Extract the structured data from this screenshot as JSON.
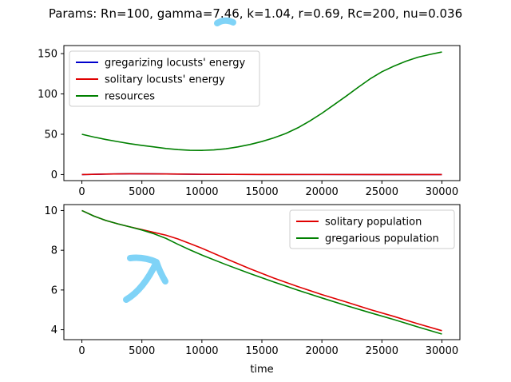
{
  "figure": {
    "suptitle": "Params: Rn=100, gamma=7.46, k=1.04, r=0.69, Rc=200, nu=0.036"
  },
  "annotations": {
    "marker_color": "#7fd3f7",
    "arrow_description_icon": "hand-drawn-arrow-icon"
  },
  "chart_data": [
    {
      "type": "line",
      "title": "",
      "xlabel": "",
      "ylabel": "",
      "xlim": [
        -1500,
        31500
      ],
      "ylim": [
        -7.5,
        160
      ],
      "xticks": [
        0,
        5000,
        10000,
        15000,
        20000,
        25000,
        30000
      ],
      "xtick_labels": [
        "0",
        "5000",
        "10000",
        "15000",
        "20000",
        "25000",
        "30000"
      ],
      "yticks": [
        0,
        50,
        100,
        150
      ],
      "ytick_labels": [
        "0",
        "50",
        "100",
        "150"
      ],
      "legend_position": "upper-left",
      "grid": false,
      "series": [
        {
          "name": "gregarizing locusts' energy",
          "color": "#0000cc",
          "x": [
            0,
            2000,
            4000,
            6000,
            8000,
            10000,
            15000,
            20000,
            25000,
            30000
          ],
          "y": [
            0,
            0.6,
            1.0,
            0.9,
            0.6,
            0.3,
            0.1,
            0.05,
            0.02,
            0
          ]
        },
        {
          "name": "solitary locusts' energy",
          "color": "#e00000",
          "x": [
            0,
            2000,
            4000,
            6000,
            8000,
            10000,
            15000,
            20000,
            25000,
            30000
          ],
          "y": [
            0,
            0.6,
            1.0,
            0.9,
            0.6,
            0.3,
            0.1,
            0.05,
            0.02,
            0
          ]
        },
        {
          "name": "resources",
          "color": "#008000",
          "x": [
            0,
            1000,
            2000,
            3000,
            4000,
            5000,
            6000,
            7000,
            8000,
            9000,
            10000,
            11000,
            12000,
            13000,
            14000,
            15000,
            16000,
            17000,
            18000,
            19000,
            20000,
            21000,
            22000,
            23000,
            24000,
            25000,
            26000,
            27000,
            28000,
            29000,
            30000
          ],
          "y": [
            50,
            46.5,
            43.5,
            40.8,
            38.3,
            36.2,
            34.3,
            32.3,
            31.0,
            30.1,
            30.0,
            30.6,
            32.0,
            34.3,
            37.3,
            41.0,
            45.5,
            51.0,
            58.0,
            66.5,
            76.0,
            86.5,
            97.0,
            108.0,
            118.5,
            127.5,
            134.5,
            140.5,
            145.5,
            149.0,
            152.0
          ]
        }
      ]
    },
    {
      "type": "line",
      "title": "",
      "xlabel": "time",
      "ylabel": "",
      "xlim": [
        -1500,
        31500
      ],
      "ylim": [
        3.5,
        10.3
      ],
      "xticks": [
        0,
        5000,
        10000,
        15000,
        20000,
        25000,
        30000
      ],
      "xtick_labels": [
        "0",
        "5000",
        "10000",
        "15000",
        "20000",
        "25000",
        "30000"
      ],
      "yticks": [
        4,
        6,
        8,
        10
      ],
      "ytick_labels": [
        "4",
        "6",
        "8",
        "10"
      ],
      "legend_position": "upper-right",
      "grid": false,
      "series": [
        {
          "name": "solitary population",
          "color": "#e00000",
          "x": [
            0,
            1000,
            2000,
            3000,
            4000,
            5000,
            6000,
            7000,
            8000,
            9000,
            10000,
            12000,
            14000,
            16000,
            18000,
            20000,
            22000,
            24000,
            26000,
            28000,
            30000
          ],
          "y": [
            10.0,
            9.72,
            9.5,
            9.33,
            9.18,
            9.04,
            8.9,
            8.76,
            8.57,
            8.34,
            8.1,
            7.58,
            7.07,
            6.6,
            6.17,
            5.77,
            5.4,
            5.02,
            4.67,
            4.3,
            3.95
          ]
        },
        {
          "name": "gregarious population",
          "color": "#008000",
          "x": [
            0,
            1000,
            2000,
            3000,
            4000,
            5000,
            6000,
            7000,
            8000,
            9000,
            10000,
            12000,
            14000,
            16000,
            18000,
            20000,
            22000,
            24000,
            26000,
            28000,
            30000
          ],
          "y": [
            10.0,
            9.72,
            9.5,
            9.33,
            9.18,
            9.02,
            8.83,
            8.6,
            8.3,
            8.02,
            7.76,
            7.28,
            6.83,
            6.4,
            5.99,
            5.6,
            5.22,
            4.86,
            4.51,
            4.14,
            3.78
          ]
        }
      ]
    }
  ]
}
